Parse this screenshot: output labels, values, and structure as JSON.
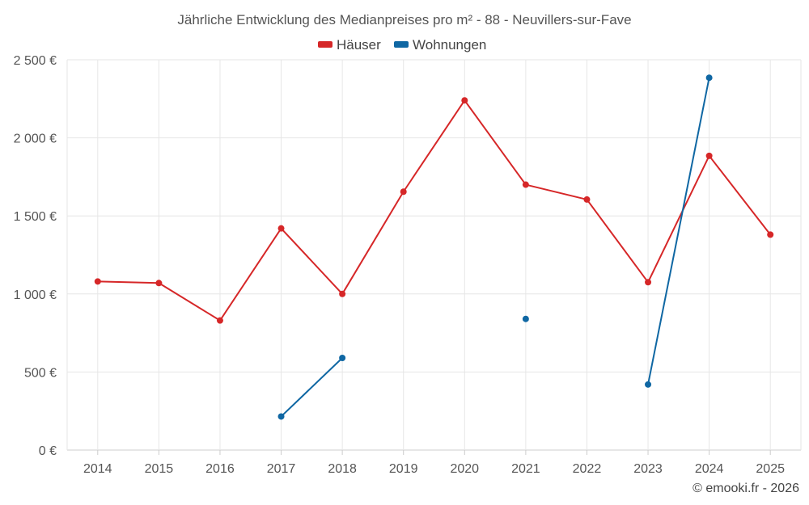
{
  "chart_data": {
    "type": "line",
    "title": "Jährliche Entwicklung des Medianpreises pro m² - 88 - Neuvillers-sur-Fave",
    "categories": [
      "2014",
      "2015",
      "2016",
      "2017",
      "2018",
      "2019",
      "2020",
      "2021",
      "2022",
      "2023",
      "2024",
      "2025"
    ],
    "ylim": [
      0,
      2500
    ],
    "yticks": [
      0,
      500,
      1000,
      1500,
      2000,
      2500
    ],
    "ytick_labels": [
      "0 €",
      "500 €",
      "1 000 €",
      "1 500 €",
      "2 000 €",
      "2 500 €"
    ],
    "grid": true,
    "legend_position": "top-center",
    "series": [
      {
        "name": "Häuser",
        "color": "#d62728",
        "values": [
          1080,
          1070,
          830,
          1420,
          1000,
          1655,
          2240,
          1700,
          1605,
          1075,
          1885,
          1380
        ]
      },
      {
        "name": "Wohnungen",
        "color": "#0f67a3",
        "values": [
          null,
          null,
          null,
          215,
          590,
          null,
          null,
          840,
          null,
          420,
          2385,
          null
        ]
      }
    ]
  },
  "credit": "© emooki.fr - 2026"
}
